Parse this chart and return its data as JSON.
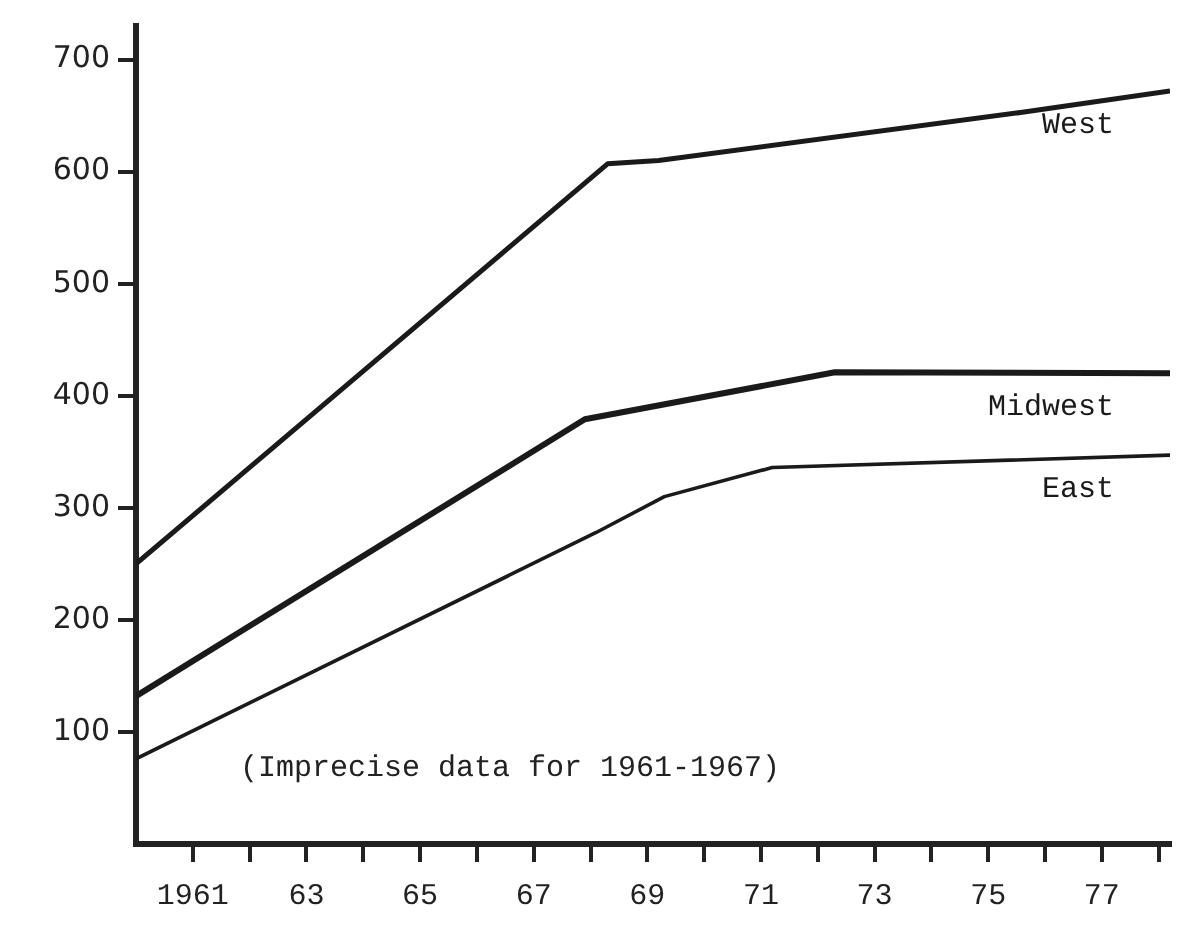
{
  "chart_data": {
    "type": "line",
    "xlim": [
      1960,
      1978.2
    ],
    "ylim": [
      0,
      730
    ],
    "xticks": [
      {
        "value": 1961,
        "label": "1961"
      },
      {
        "value": 1962,
        "label": null
      },
      {
        "value": 1963,
        "label": "63"
      },
      {
        "value": 1964,
        "label": null
      },
      {
        "value": 1965,
        "label": "65"
      },
      {
        "value": 1966,
        "label": null
      },
      {
        "value": 1967,
        "label": "67"
      },
      {
        "value": 1968,
        "label": null
      },
      {
        "value": 1969,
        "label": "69"
      },
      {
        "value": 1970,
        "label": null
      },
      {
        "value": 1971,
        "label": "71"
      },
      {
        "value": 1972,
        "label": null
      },
      {
        "value": 1973,
        "label": "73"
      },
      {
        "value": 1974,
        "label": null
      },
      {
        "value": 1975,
        "label": "75"
      },
      {
        "value": 1976,
        "label": null
      },
      {
        "value": 1977,
        "label": "77"
      },
      {
        "value": 1978,
        "label": null
      }
    ],
    "yticks": [
      100,
      200,
      300,
      400,
      500,
      600,
      700
    ],
    "grid": false,
    "legend": false,
    "marker": "none",
    "line_style": "solid",
    "series": [
      {
        "name": "West",
        "color": "#1a1a1a",
        "x": [
          1960,
          1968.3,
          1969.2,
          1975.6,
          1978.2
        ],
        "values": [
          250,
          607,
          610,
          653,
          672
        ]
      },
      {
        "name": "Midwest",
        "color": "#1a1a1a",
        "x": [
          1960,
          1967.9,
          1972.3,
          1978.2
        ],
        "values": [
          132,
          379,
          421,
          420
        ]
      },
      {
        "name": "East",
        "color": "#1a1a1a",
        "x": [
          1960,
          1968.1,
          1969.3,
          1971.2,
          1978.2
        ],
        "values": [
          76,
          278,
          310,
          336,
          347
        ]
      }
    ],
    "annotations": [
      "(Imprecise data for 1961-1967)"
    ]
  }
}
